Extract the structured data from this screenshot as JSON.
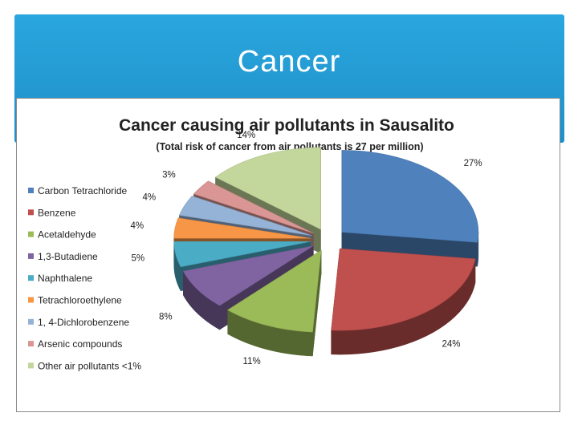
{
  "slide": {
    "title": "Cancer"
  },
  "chart_data": {
    "type": "pie",
    "title": "Cancer causing air pollutants in Sausalito",
    "subtitle": "(Total risk of cancer from air pollutants is 27 per million)",
    "legend_position": "left",
    "exploded": true,
    "three_d": true,
    "slices": [
      {
        "label": "Carbon Tetrachloride",
        "value": 27,
        "value_label": "27%",
        "color": "#4f81bd"
      },
      {
        "label": "Benzene",
        "value": 24,
        "value_label": "24%",
        "color": "#c0504d"
      },
      {
        "label": "Acetaldehyde",
        "value": 11,
        "value_label": "11%",
        "color": "#9bbb59"
      },
      {
        "label": "1,3-Butadiene",
        "value": 8,
        "value_label": "8%",
        "color": "#8064a2"
      },
      {
        "label": "Naphthalene",
        "value": 5,
        "value_label": "5%",
        "color": "#4bacc6"
      },
      {
        "label": "Tetrachloroethylene",
        "value": 4,
        "value_label": "4%",
        "color": "#f79646"
      },
      {
        "label": "1, 4-Dichlorobenzene",
        "value": 4,
        "value_label": "4%",
        "color": "#95b3d7"
      },
      {
        "label": "Arsenic compounds",
        "value": 3,
        "value_label": "3%",
        "color": "#d99694"
      },
      {
        "label": "Other air pollutants <1%",
        "value": 14,
        "value_label": "14%",
        "color": "#c3d69b"
      }
    ]
  }
}
